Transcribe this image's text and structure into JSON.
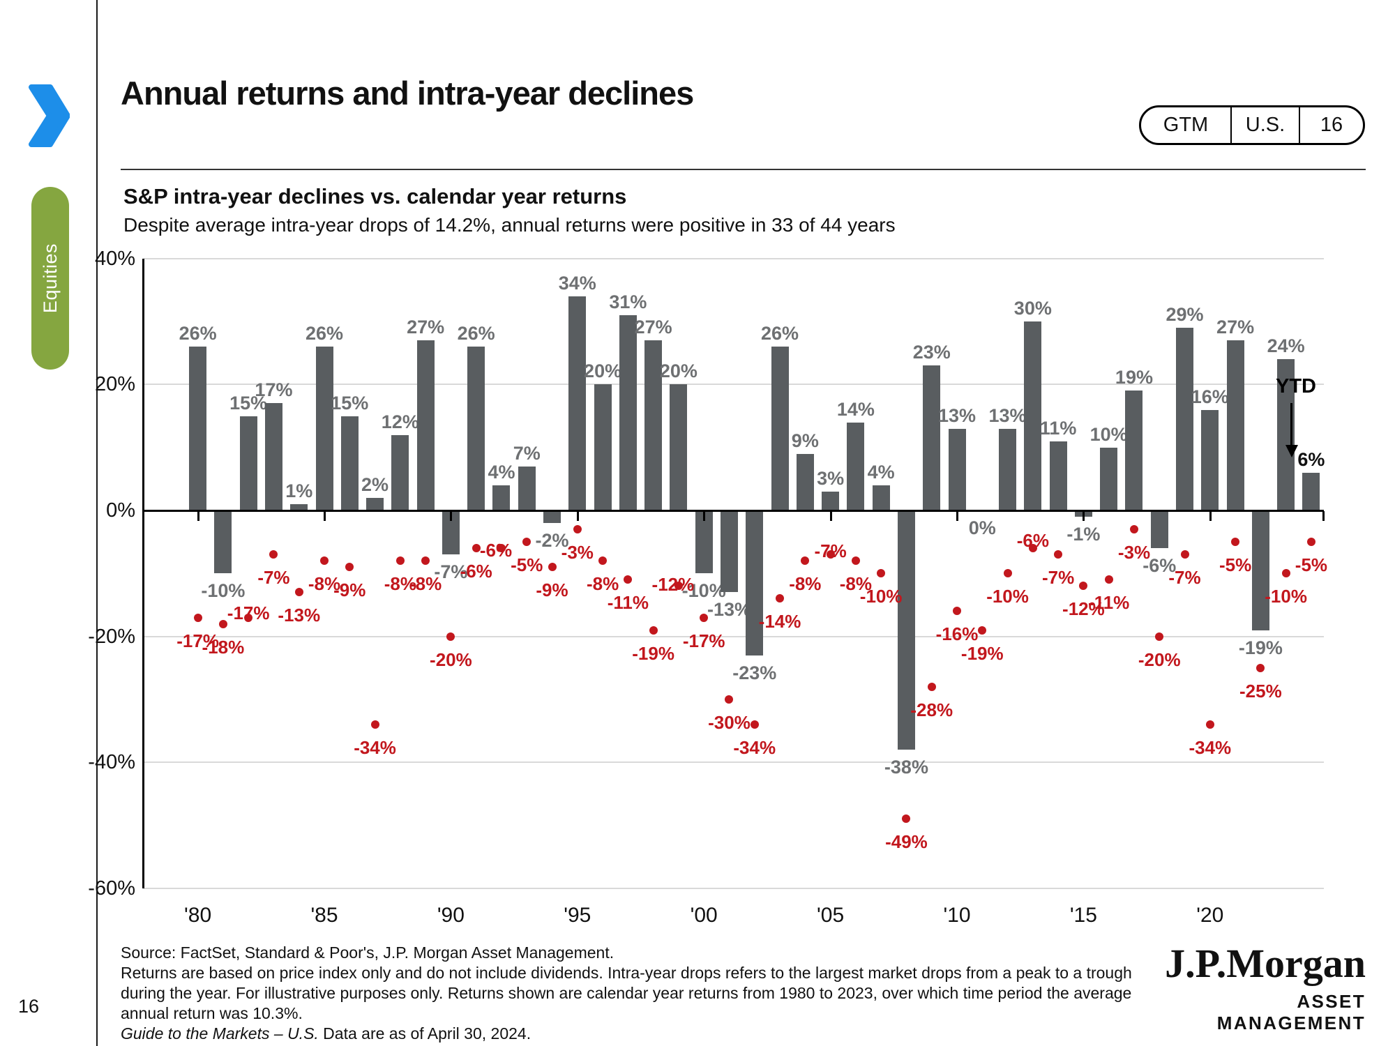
{
  "page": {
    "number": "16"
  },
  "header": {
    "title": "Annual returns and intra-year declines",
    "badge": {
      "gtm": "GTM",
      "region": "U.S.",
      "page": "16"
    }
  },
  "sidebar": {
    "tab": "Equities"
  },
  "chart_header": {
    "title": "S&P intra-year declines vs. calendar year returns",
    "subtitle": "Despite average intra-year drops of 14.2%, annual returns were positive in 33 of 44 years"
  },
  "chart_data": {
    "type": "bar",
    "title": "S&P intra-year declines vs. calendar year returns",
    "categories": [
      "1980",
      "1981",
      "1982",
      "1983",
      "1984",
      "1985",
      "1986",
      "1987",
      "1988",
      "1989",
      "1990",
      "1991",
      "1992",
      "1993",
      "1994",
      "1995",
      "1996",
      "1997",
      "1998",
      "1999",
      "2000",
      "2001",
      "2002",
      "2003",
      "2004",
      "2005",
      "2006",
      "2007",
      "2008",
      "2009",
      "2010",
      "2011",
      "2012",
      "2013",
      "2014",
      "2015",
      "2016",
      "2017",
      "2018",
      "2019",
      "2020",
      "2021",
      "2022",
      "2023",
      "YTD"
    ],
    "series": [
      {
        "name": "Calendar year return",
        "values": [
          26,
          -10,
          15,
          17,
          1,
          26,
          15,
          2,
          12,
          27,
          -7,
          26,
          4,
          7,
          -2,
          34,
          20,
          31,
          27,
          20,
          -10,
          -13,
          -23,
          26,
          9,
          3,
          14,
          4,
          -38,
          23,
          13,
          0,
          13,
          30,
          11,
          -1,
          10,
          19,
          -6,
          29,
          16,
          27,
          -19,
          24,
          6
        ]
      },
      {
        "name": "Intra-year decline",
        "values": [
          -17,
          -18,
          -17,
          -7,
          -13,
          -8,
          -9,
          -34,
          -8,
          -8,
          -20,
          -6,
          -6,
          -5,
          -9,
          -3,
          -8,
          -11,
          -19,
          -12,
          -17,
          -30,
          -34,
          -14,
          -8,
          -7,
          -8,
          -10,
          -49,
          -28,
          -16,
          -19,
          -10,
          -6,
          -7,
          -12,
          -11,
          -3,
          -20,
          -7,
          -34,
          -5,
          -25,
          -10,
          -5
        ]
      }
    ],
    "y_ticks": [
      {
        "label": "40%",
        "value": 40
      },
      {
        "label": "20%",
        "value": 20
      },
      {
        "label": "0%",
        "value": 0
      },
      {
        "label": "-20%",
        "value": -20
      },
      {
        "label": "-40%",
        "value": -40
      },
      {
        "label": "-60%",
        "value": -60
      }
    ],
    "x_tick_labels": [
      "'80",
      "'85",
      "'90",
      "'95",
      "'00",
      "'05",
      "'10",
      "'15",
      "'20"
    ],
    "ylim": [
      -60,
      40
    ],
    "grid": true,
    "bar_color": "#595d60",
    "bar_label_color": "#6e7072",
    "dot_color": "#c2171d",
    "ytd_annotation": {
      "label": "YTD",
      "value_label": "6%"
    }
  },
  "footer": {
    "lines": [
      "Source: FactSet, Standard & Poor's, J.P. Morgan Asset Management.",
      "Returns are based on price index only and do not include dividends.  Intra-year drops refers to the largest market drops from a peak to a trough",
      "during the year. For illustrative purposes only. Returns shown are calendar year returns from 1980 to 2023, over which time period the average",
      "annual return was 10.3%."
    ],
    "italic": "Guide to the Markets – U.S.",
    "rest": " Data are as of April 30, 2024."
  },
  "logo": {
    "main": "J.P.Morgan",
    "sub": "ASSET MANAGEMENT"
  }
}
